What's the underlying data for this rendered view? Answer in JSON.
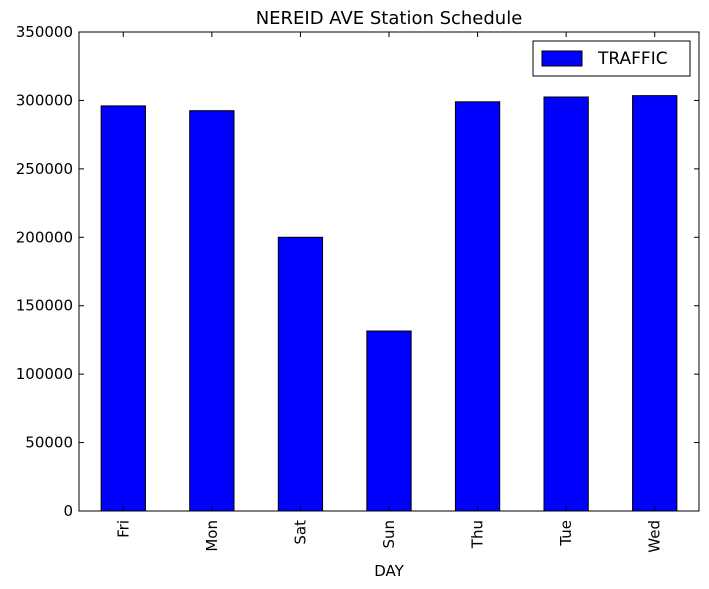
{
  "chart_data": {
    "type": "bar",
    "title": "NEREID AVE Station Schedule",
    "xlabel": "DAY",
    "ylabel": "",
    "categories": [
      "Fri",
      "Mon",
      "Sat",
      "Sun",
      "Thu",
      "Tue",
      "Wed"
    ],
    "series": [
      {
        "name": "TRAFFIC",
        "values": [
          296000,
          292500,
          200000,
          131500,
          299000,
          302500,
          303500
        ],
        "color": "#0000ff"
      }
    ],
    "ylim": [
      0,
      350000
    ],
    "yticks": [
      0,
      50000,
      100000,
      150000,
      200000,
      250000,
      300000,
      350000
    ],
    "ytick_labels": [
      "0",
      "50000",
      "100000",
      "150000",
      "200000",
      "250000",
      "300000",
      "350000"
    ],
    "grid": false,
    "legend_position": "top-right"
  }
}
